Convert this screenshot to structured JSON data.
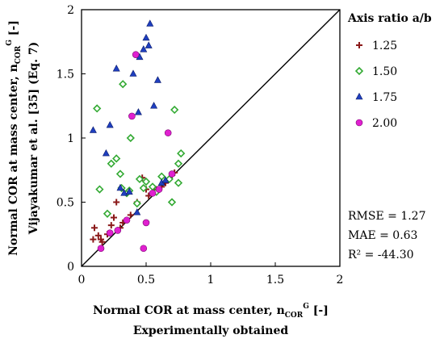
{
  "chart_data": {
    "type": "scatter",
    "title": "",
    "xlabel": {
      "main": "Normal COR at mass center, n",
      "sub": "COR",
      "sup": "G",
      "unit": " [-]",
      "line2": "Experimentally obtained"
    },
    "ylabel": {
      "main": "Normal COR at mass center, n",
      "sub": "COR",
      "sup": "G",
      "unit": " [-]",
      "line2": "Vijayakumar et al. [35] (Eq. 7)"
    },
    "xlim": [
      0,
      2
    ],
    "ylim": [
      0,
      2
    ],
    "xticks": [
      "0",
      "0.5",
      "1",
      "1.5",
      "2"
    ],
    "yticks": [
      "0",
      "0.5",
      "1",
      "1.5",
      "2"
    ],
    "reference_line": "y = x",
    "grid": false,
    "legend": {
      "title": "Axis ratio a/b",
      "placement": "right",
      "entries": [
        "1.25",
        "1.50",
        "1.75",
        "2.00"
      ]
    },
    "stats": [
      "RMSE = 1.27",
      "MAE = 0.63",
      "R² = -44.30"
    ],
    "series": [
      {
        "name": "1.25",
        "marker": "plus",
        "color": "#8b1a1a",
        "points": [
          [
            0.1,
            0.3
          ],
          [
            0.09,
            0.21
          ],
          [
            0.13,
            0.24
          ],
          [
            0.15,
            0.14
          ],
          [
            0.15,
            0.21
          ],
          [
            0.16,
            0.19
          ],
          [
            0.2,
            0.25
          ],
          [
            0.22,
            0.26
          ],
          [
            0.23,
            0.32
          ],
          [
            0.25,
            0.38
          ],
          [
            0.27,
            0.5
          ],
          [
            0.3,
            0.3
          ],
          [
            0.32,
            0.34
          ],
          [
            0.38,
            0.4
          ],
          [
            0.43,
            0.5
          ],
          [
            0.47,
            0.69
          ],
          [
            0.5,
            0.6
          ],
          [
            0.52,
            0.55
          ],
          [
            0.55,
            0.57
          ],
          [
            0.58,
            0.6
          ],
          [
            0.62,
            0.62
          ],
          [
            0.65,
            0.65
          ],
          [
            0.7,
            0.71
          ],
          [
            0.72,
            0.73
          ]
        ]
      },
      {
        "name": "1.50",
        "marker": "diamond",
        "color": "#33aa33",
        "points": [
          [
            0.12,
            1.23
          ],
          [
            0.14,
            0.6
          ],
          [
            0.2,
            0.41
          ],
          [
            0.23,
            0.8
          ],
          [
            0.27,
            0.84
          ],
          [
            0.3,
            0.72
          ],
          [
            0.31,
            0.61
          ],
          [
            0.32,
            1.42
          ],
          [
            0.35,
            0.57
          ],
          [
            0.37,
            0.59
          ],
          [
            0.38,
            1.0
          ],
          [
            0.43,
            0.49
          ],
          [
            0.45,
            0.68
          ],
          [
            0.48,
            0.61
          ],
          [
            0.5,
            0.66
          ],
          [
            0.55,
            0.62
          ],
          [
            0.58,
            0.58
          ],
          [
            0.62,
            0.7
          ],
          [
            0.68,
            0.68
          ],
          [
            0.7,
            0.5
          ],
          [
            0.72,
            1.22
          ],
          [
            0.75,
            0.65
          ],
          [
            0.75,
            0.8
          ],
          [
            0.77,
            0.88
          ]
        ]
      },
      {
        "name": "1.75",
        "marker": "triangle",
        "color": "#1f3fbf",
        "points": [
          [
            0.09,
            1.06
          ],
          [
            0.19,
            0.88
          ],
          [
            0.22,
            1.1
          ],
          [
            0.27,
            1.54
          ],
          [
            0.3,
            0.61
          ],
          [
            0.33,
            0.57
          ],
          [
            0.37,
            0.58
          ],
          [
            0.4,
            1.5
          ],
          [
            0.43,
            0.42
          ],
          [
            0.44,
            1.2
          ],
          [
            0.45,
            1.63
          ],
          [
            0.48,
            1.69
          ],
          [
            0.5,
            1.78
          ],
          [
            0.52,
            1.72
          ],
          [
            0.53,
            1.89
          ],
          [
            0.56,
            1.25
          ],
          [
            0.59,
            1.45
          ],
          [
            0.62,
            0.65
          ],
          [
            0.65,
            0.67
          ]
        ]
      },
      {
        "name": "2.00",
        "marker": "circle",
        "color": "#e020d0",
        "points": [
          [
            0.15,
            0.14
          ],
          [
            0.22,
            0.26
          ],
          [
            0.28,
            0.28
          ],
          [
            0.35,
            0.36
          ],
          [
            0.39,
            1.17
          ],
          [
            0.42,
            1.65
          ],
          [
            0.48,
            0.14
          ],
          [
            0.5,
            0.34
          ],
          [
            0.55,
            0.57
          ],
          [
            0.6,
            0.6
          ],
          [
            0.67,
            1.04
          ],
          [
            0.7,
            0.72
          ]
        ]
      }
    ]
  }
}
